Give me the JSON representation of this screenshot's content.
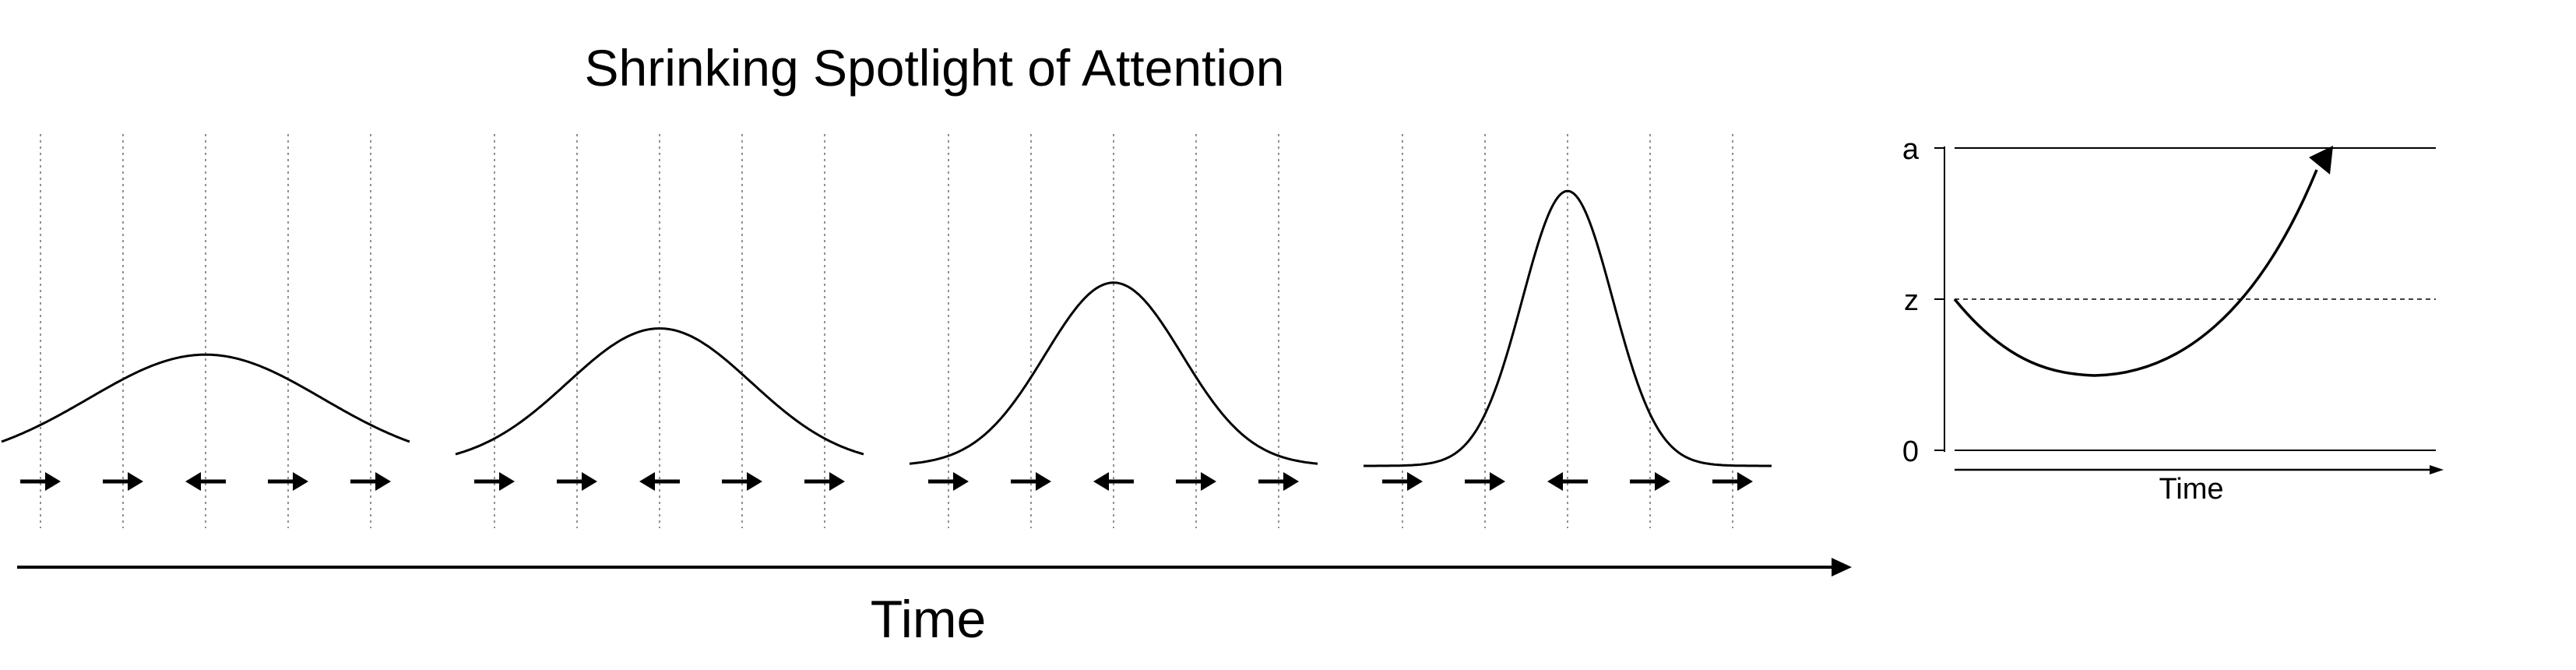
{
  "figure": {
    "title": "Shrinking Spotlight of Attention",
    "time_axis_label": "Time",
    "panel_count": 4,
    "spotlight_peaks_relative": [
      0.34,
      0.42,
      0.56,
      0.84
    ],
    "flanker_arrows": [
      "→",
      "→",
      "←",
      "→",
      "→"
    ],
    "stroke_color": "#000000",
    "gridline_style": "dotted"
  },
  "ddm": {
    "boundary_upper_label": "a",
    "start_point_label": "z",
    "boundary_lower_label": "0",
    "time_label": "Time",
    "path_shape": "dips toward 0 then curves up to hit boundary a"
  }
}
